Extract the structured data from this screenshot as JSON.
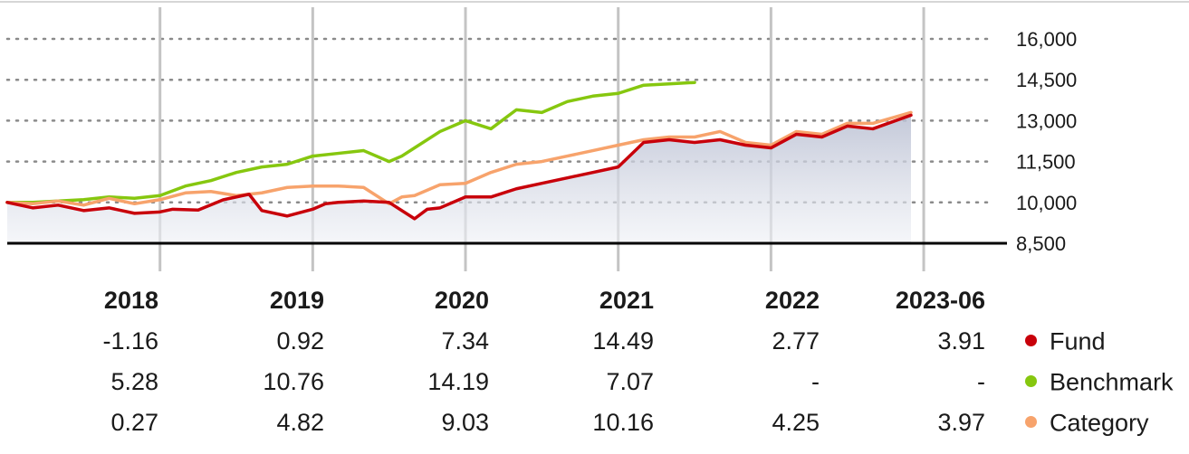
{
  "chart_data": {
    "type": "line",
    "y_ticks": [
      "16,000",
      "14,500",
      "13,000",
      "11,500",
      "10,000",
      "8,500"
    ],
    "ylim": [
      8500,
      16000
    ],
    "x_domain": [
      "2017-07",
      "2023-06"
    ],
    "year_labels": [
      "2018",
      "2019",
      "2020",
      "2021",
      "2022",
      "2023-06"
    ],
    "grid": true,
    "series": [
      {
        "name": "Fund",
        "color": "#c8000a",
        "dates": [
          "2017-07",
          "2017-09",
          "2017-11",
          "2018-01",
          "2018-03",
          "2018-05",
          "2018-07",
          "2018-08",
          "2018-10",
          "2018-12",
          "2019-02",
          "2019-03",
          "2019-05",
          "2019-07",
          "2019-08",
          "2019-09",
          "2019-11",
          "2020-01",
          "2020-03",
          "2020-04",
          "2020-05",
          "2020-07",
          "2020-09",
          "2020-11",
          "2021-01",
          "2021-03",
          "2021-05",
          "2021-07",
          "2021-09",
          "2021-11",
          "2022-01",
          "2022-03",
          "2022-05",
          "2022-07",
          "2022-09",
          "2022-11",
          "2023-01",
          "2023-03",
          "2023-06"
        ],
        "values": [
          10000,
          9800,
          9900,
          9700,
          9800,
          9600,
          9650,
          9750,
          9720,
          10100,
          10300,
          9700,
          9500,
          9750,
          9950,
          10000,
          10050,
          10000,
          9400,
          9750,
          9800,
          10200,
          10200,
          10500,
          10700,
          10900,
          11100,
          11300,
          12200,
          12300,
          12200,
          12300,
          12100,
          12000,
          12500,
          12400,
          12800,
          12700,
          13200
        ]
      },
      {
        "name": "Benchmark",
        "color": "#86c70f",
        "dates": [
          "2017-07",
          "2017-09",
          "2017-11",
          "2018-01",
          "2018-03",
          "2018-05",
          "2018-07",
          "2018-09",
          "2018-11",
          "2019-01",
          "2019-03",
          "2019-05",
          "2019-07",
          "2019-09",
          "2019-11",
          "2020-01",
          "2020-02",
          "2020-03",
          "2020-05",
          "2020-07",
          "2020-09",
          "2020-11",
          "2021-01",
          "2021-03",
          "2021-05",
          "2021-07",
          "2021-09",
          "2021-11",
          "2022-01"
        ],
        "values": [
          10000,
          10000,
          10050,
          10100,
          10200,
          10150,
          10250,
          10600,
          10800,
          11100,
          11300,
          11400,
          11700,
          11800,
          11900,
          11500,
          11700,
          12000,
          12600,
          13000,
          12700,
          13400,
          13300,
          13700,
          13900,
          14000,
          14300,
          14350,
          14400
        ]
      },
      {
        "name": "Category",
        "color": "#f7a36c",
        "dates": [
          "2017-07",
          "2017-09",
          "2017-11",
          "2018-01",
          "2018-03",
          "2018-05",
          "2018-07",
          "2018-09",
          "2018-11",
          "2019-01",
          "2019-03",
          "2019-05",
          "2019-07",
          "2019-09",
          "2019-11",
          "2020-01",
          "2020-02",
          "2020-03",
          "2020-05",
          "2020-07",
          "2020-09",
          "2020-11",
          "2021-01",
          "2021-03",
          "2021-05",
          "2021-07",
          "2021-09",
          "2021-11",
          "2022-01",
          "2022-03",
          "2022-05",
          "2022-07",
          "2022-09",
          "2022-11",
          "2023-01",
          "2023-03",
          "2023-06"
        ],
        "values": [
          10000,
          9950,
          10050,
          9900,
          10150,
          9950,
          10100,
          10350,
          10400,
          10250,
          10350,
          10550,
          10600,
          10600,
          10550,
          9950,
          10200,
          10250,
          10650,
          10700,
          11100,
          11400,
          11500,
          11700,
          11900,
          12100,
          12300,
          12400,
          12400,
          12600,
          12200,
          12100,
          12600,
          12500,
          12900,
          12900,
          13300
        ]
      }
    ],
    "annual_returns": {
      "years": [
        "2018",
        "2019",
        "2020",
        "2021",
        "2022",
        "2023-06"
      ],
      "rows": [
        {
          "name": "Fund",
          "color": "#c8000a",
          "values": [
            "-1.16",
            "0.92",
            "7.34",
            "14.49",
            "2.77",
            "3.91"
          ]
        },
        {
          "name": "Benchmark",
          "color": "#86c70f",
          "values": [
            "5.28",
            "10.76",
            "14.19",
            "7.07",
            "-",
            "-"
          ]
        },
        {
          "name": "Category",
          "color": "#f7a36c",
          "values": [
            "0.27",
            "4.82",
            "9.03",
            "10.16",
            "4.25",
            "3.97"
          ]
        }
      ]
    }
  }
}
